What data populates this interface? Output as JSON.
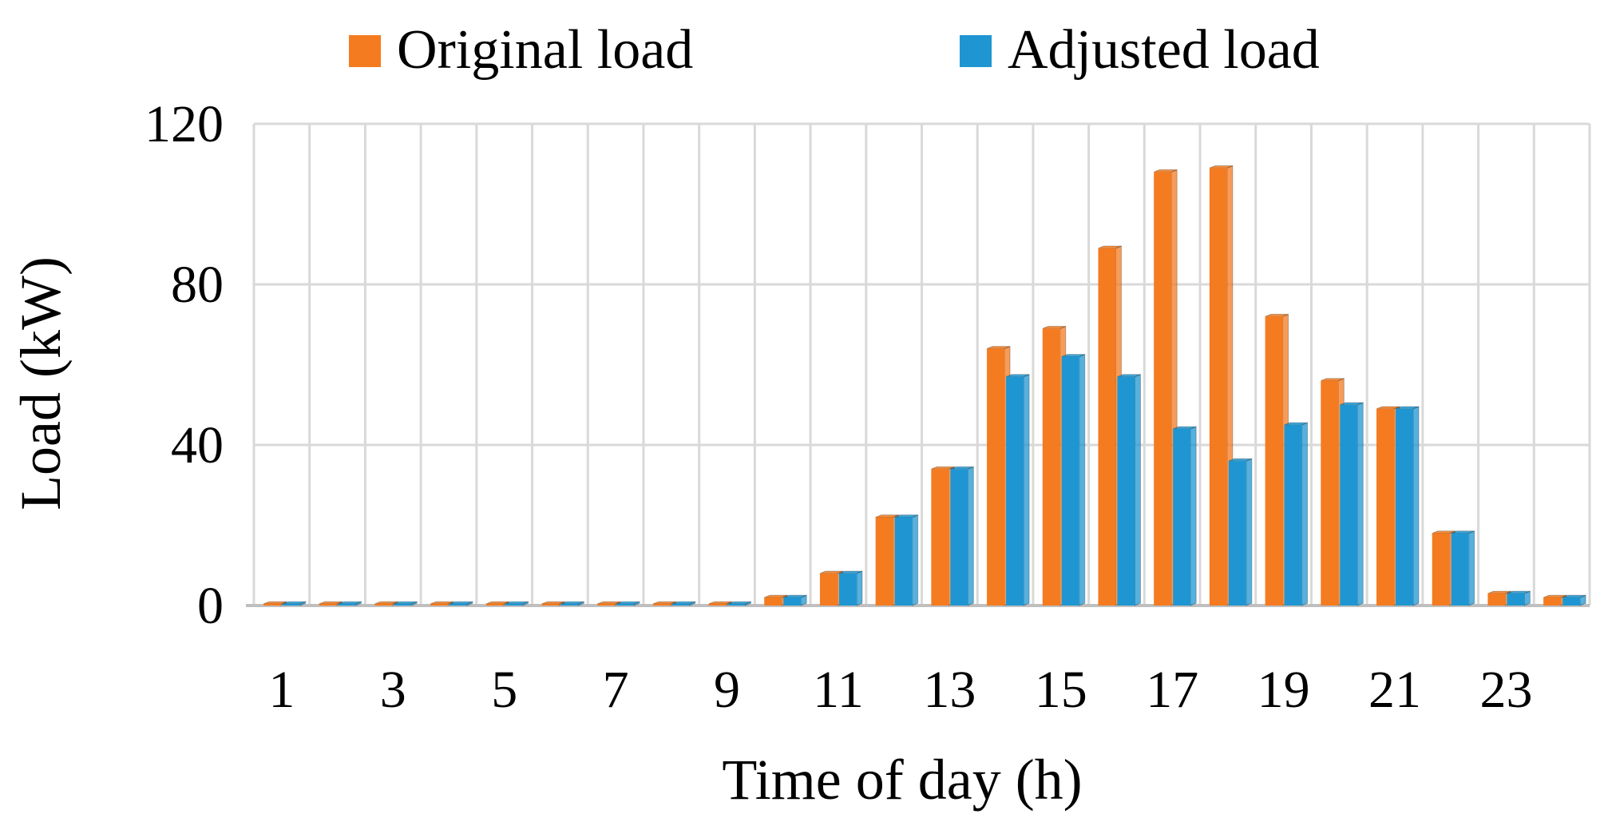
{
  "chart_data": {
    "type": "bar",
    "title": "",
    "xlabel": "Time of day  (h)",
    "ylabel": "Load  (kW)",
    "ylim": [
      0,
      120
    ],
    "yticks": [
      0,
      40,
      80,
      120
    ],
    "categories": [
      1,
      2,
      3,
      4,
      5,
      6,
      7,
      8,
      9,
      10,
      11,
      12,
      13,
      14,
      15,
      16,
      17,
      18,
      19,
      20,
      21,
      22,
      23,
      24
    ],
    "xtick_labels": [
      "1",
      "",
      "3",
      "",
      "5",
      "",
      "7",
      "",
      "9",
      "",
      "11",
      "",
      "13",
      "",
      "15",
      "",
      "17",
      "",
      "19",
      "",
      "21",
      "",
      "23",
      ""
    ],
    "grid": true,
    "legend_position": "top",
    "series": [
      {
        "name": "Original load",
        "color": "#F47B20",
        "values": [
          0,
          0,
          0,
          0,
          0,
          0,
          0,
          0,
          0,
          2,
          8,
          22,
          34,
          64,
          69,
          89,
          108,
          109,
          72,
          56,
          49,
          18,
          3,
          2
        ]
      },
      {
        "name": "Adjusted load",
        "color": "#1F96D1",
        "values": [
          0,
          0,
          0,
          0,
          0,
          0,
          0,
          0,
          0,
          2,
          8,
          22,
          34,
          57,
          62,
          57,
          44,
          36,
          45,
          50,
          49,
          18,
          3,
          2
        ]
      }
    ]
  }
}
